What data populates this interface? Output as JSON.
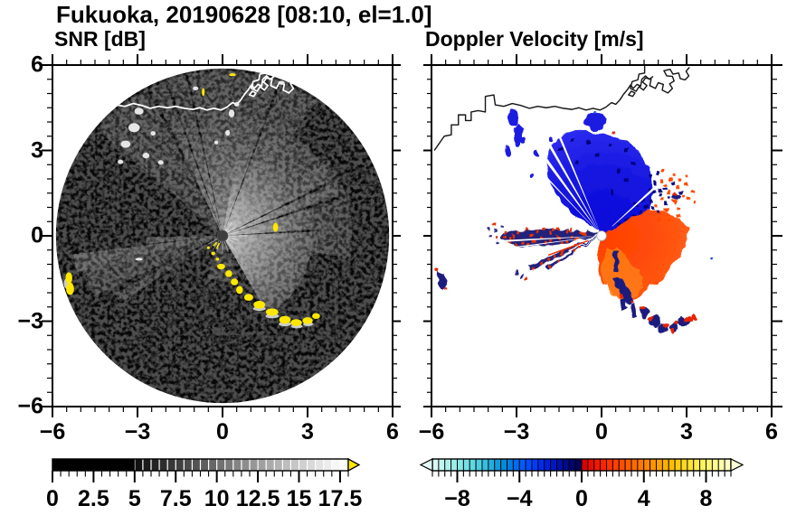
{
  "title": "Fukuoka, 20190628 [08:10, el=1.0]",
  "panels": [
    {
      "subtitle": "SNR [dB]",
      "x_tick_labels": [
        "−6",
        "−3",
        "0",
        "3",
        "6"
      ],
      "y_tick_labels": [
        "6",
        "3",
        "0",
        "−3",
        "−6"
      ]
    },
    {
      "subtitle": "Doppler Velocity [m/s]",
      "x_tick_labels": [
        "−6",
        "−3",
        "0",
        "3",
        "6"
      ],
      "y_tick_labels": []
    }
  ],
  "colorbars": [
    {
      "name": "snr",
      "labels": [
        "0",
        "2.5",
        "5",
        "7.5",
        "10",
        "12.5",
        "15",
        "17.5"
      ],
      "flat_color": "#000000",
      "flat_segments": 10,
      "ramp_segments": 26,
      "ramp_start_gray": 18,
      "ramp_end_gray": 255,
      "overflow_color": "#ffe800"
    },
    {
      "name": "velocity",
      "labels": [
        "−8",
        "−4",
        "0",
        "4",
        "8"
      ],
      "under_color": "#e2faf6",
      "over_color": "#ffffd8",
      "segment_colors": [
        "#d8f8f4",
        "#c4f4f0",
        "#b0f0ec",
        "#9cece8",
        "#88e6e6",
        "#74e0e4",
        "#60d8e2",
        "#4ccce0",
        "#38bede",
        "#24aede",
        "#109cdc",
        "#008cd8",
        "#007ce4",
        "#006cf0",
        "#005cfa",
        "#004cff",
        "#003cf8",
        "#002cec",
        "#0020dc",
        "#0018c4",
        "#0010a8",
        "#000a8c",
        "#000670",
        "#000258",
        "#dc0000",
        "#e80c00",
        "#f41800",
        "#fe2400",
        "#ff3200",
        "#ff4000",
        "#ff4e00",
        "#ff5c00",
        "#ff6a00",
        "#ff7800",
        "#ff8600",
        "#ff9400",
        "#ffa200",
        "#ffb000",
        "#ffbe00",
        "#ffcc10",
        "#ffda20",
        "#ffe430",
        "#ffec48",
        "#fff260",
        "#fff678",
        "#fffa90",
        "#fffcaa",
        "#fffec4"
      ]
    }
  ],
  "chart_data": [
    {
      "type": "heatmap",
      "title": "SNR [dB]",
      "x_range": [
        -6,
        6
      ],
      "y_range": [
        -6,
        6
      ],
      "x_major_ticks": [
        -6,
        -3,
        0,
        3,
        6
      ],
      "y_major_ticks": [
        6,
        3,
        0,
        -3,
        -6
      ],
      "minor_tick_step": 0.5,
      "colorbar": {
        "range": [
          0,
          18
        ],
        "segment_step": 0.5,
        "tick_labels": [
          0,
          2.5,
          5,
          7.5,
          10,
          12.5,
          15,
          17.5
        ],
        "scheme": "flat black below 5, grayscale ramp to white, yellow overflow arrow"
      },
      "features": [
        "black radar scan disk of ~5.9 radius centered on origin",
        "bright gray echo fan from north through east to southeast of center",
        "dim echo fan reaching the coastline to the north",
        "two gray beams extending west-southwest with black shadow wedges",
        "thin black shadow rays cutting the northern fan",
        "yellow saturated clutter arc in the lower-right quadrant",
        "yellow clutter patches at the west-southwest rim",
        "white coastline and harbor outlines across the top of the disk",
        "white point clutter northwest and north of center",
        "dark gray radar dome at the origin with bright radial streaks"
      ]
    },
    {
      "type": "heatmap",
      "title": "Doppler Velocity [m/s]",
      "x_range": [
        -6,
        6
      ],
      "y_range": [
        -6,
        6
      ],
      "x_major_ticks": [
        -6,
        -3,
        0,
        3,
        6
      ],
      "y_major_ticks": [
        6,
        3,
        0,
        -3,
        -6
      ],
      "minor_tick_step": 0.5,
      "colorbar": {
        "range": [
          -9.6,
          9.6
        ],
        "segment_step": 0.4,
        "tick_labels": [
          -8,
          -4,
          0,
          4,
          8
        ],
        "scheme": "pale cyan to navy for negative, red through orange to cream for positive, arrows both ends"
      },
      "features": [
        "blue fan (motion toward radar) north of center out to ~3.6",
        "red-orange fan (motion away) east through south of center out to ~3",
        "narrow white shadow wedges through the blue fan toward northwest",
        "navy and red aliased wedge extending due west plus two southwest stripes",
        "navy arc segments with red fringes to the south-southeast",
        "isolated navy patch with red fringe at the far-west rim",
        "scattered small blue echoes to the northwest near the coast",
        "black coastline and harbor outlines across the top",
        "white circle at the radar origin"
      ]
    }
  ]
}
